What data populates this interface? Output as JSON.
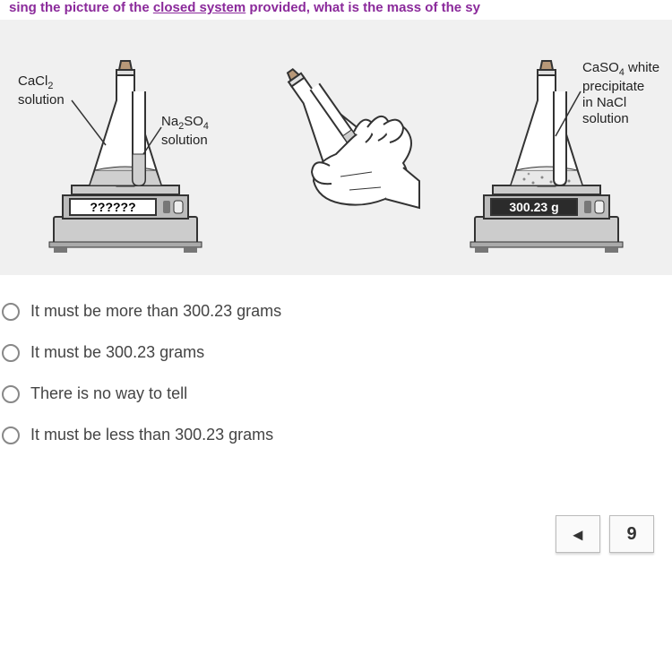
{
  "title": {
    "prefix": "sing the picture of the ",
    "underlined": "closed system",
    "suffix": " provided, what is the mass of the sy"
  },
  "labels": {
    "cacl2_html": "CaCl<sub>2</sub><br>solution",
    "na2so4_html": "Na<sub>2</sub>SO<sub>4</sub><br>solution",
    "caso4_html": "CaSO<sub>4</sub> white<br>precipitate<br>in NaCl<br>solution"
  },
  "scale_left_display": "??????",
  "scale_right_display": "300.23 g",
  "options": [
    "It must be more than 300.23 grams",
    "It must be 300.23 grams",
    "There is no way to tell",
    "It must be less than 300.23 grams"
  ],
  "nav": {
    "prev": "◂",
    "page": "9"
  },
  "colors": {
    "bg": "#f0f0f0",
    "scale_body": "#cccccc",
    "scale_dark": "#888888",
    "display_left_bg": "#ffffff",
    "display_right_bg": "#2b2b2b",
    "liquid": "#cfcfcf",
    "flask_outline": "#333333"
  }
}
